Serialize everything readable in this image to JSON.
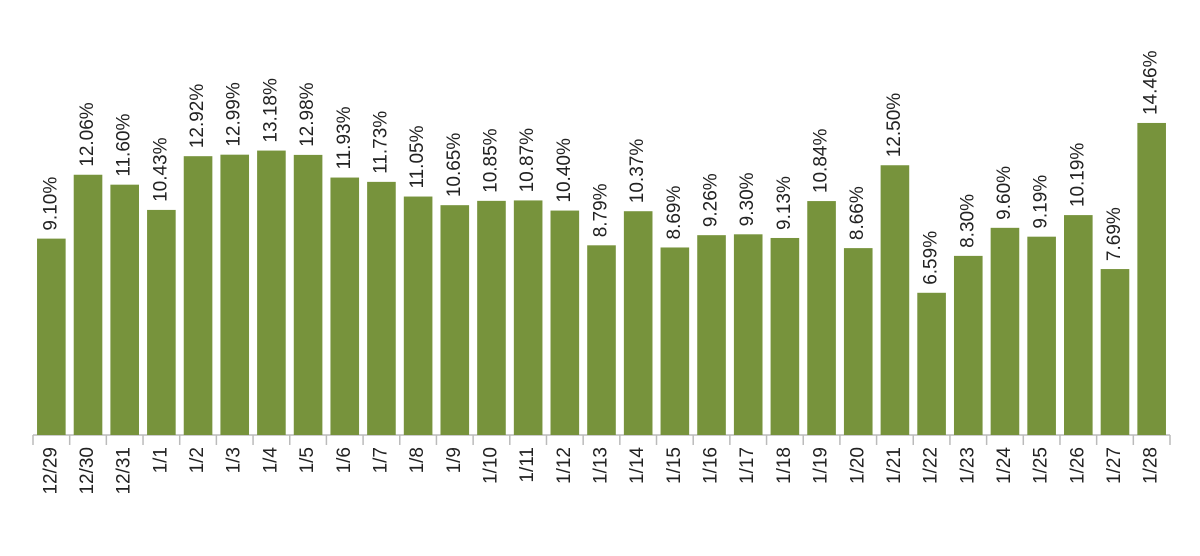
{
  "chart_data": {
    "type": "bar",
    "categories": [
      "12/29",
      "12/30",
      "12/31",
      "1/1",
      "1/2",
      "1/3",
      "1/4",
      "1/5",
      "1/6",
      "1/7",
      "1/8",
      "1/9",
      "1/10",
      "1/11",
      "1/12",
      "1/13",
      "1/14",
      "1/15",
      "1/16",
      "1/17",
      "1/18",
      "1/19",
      "1/20",
      "1/21",
      "1/22",
      "1/23",
      "1/24",
      "1/25",
      "1/26",
      "1/27",
      "1/28"
    ],
    "values": [
      9.1,
      12.06,
      11.6,
      10.43,
      12.92,
      12.99,
      13.18,
      12.98,
      11.93,
      11.73,
      11.05,
      10.65,
      10.85,
      10.87,
      10.4,
      8.79,
      10.37,
      8.69,
      9.26,
      9.3,
      9.13,
      10.84,
      8.66,
      12.5,
      6.59,
      8.3,
      9.6,
      9.19,
      10.19,
      7.69,
      14.46
    ],
    "value_labels": [
      "9.10%",
      "12.06%",
      "11.60%",
      "10.43%",
      "12.92%",
      "12.99%",
      "13.18%",
      "12.98%",
      "11.93%",
      "11.73%",
      "11.05%",
      "10.65%",
      "10.85%",
      "10.87%",
      "10.40%",
      "8.79%",
      "10.37%",
      "8.69%",
      "9.26%",
      "9.30%",
      "9.13%",
      "10.84%",
      "8.66%",
      "12.50%",
      "6.59%",
      "8.30%",
      "9.60%",
      "9.19%",
      "10.19%",
      "7.69%",
      "14.46%"
    ],
    "color": "#77933c"
  }
}
